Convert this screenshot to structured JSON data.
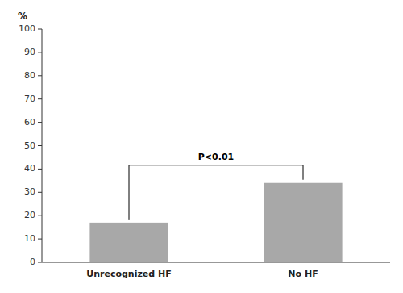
{
  "chart_data": {
    "type": "bar",
    "categories": [
      "Unrecognized HF",
      "No HF"
    ],
    "values": [
      17,
      34
    ],
    "color": "#a8a8a8",
    "ylabel": "%",
    "ylim": [
      0,
      100
    ],
    "yticks": [
      0,
      10,
      20,
      30,
      40,
      50,
      60,
      70,
      80,
      90,
      100
    ],
    "annotations": [
      {
        "text": "P<0.01"
      }
    ],
    "grid": false
  }
}
